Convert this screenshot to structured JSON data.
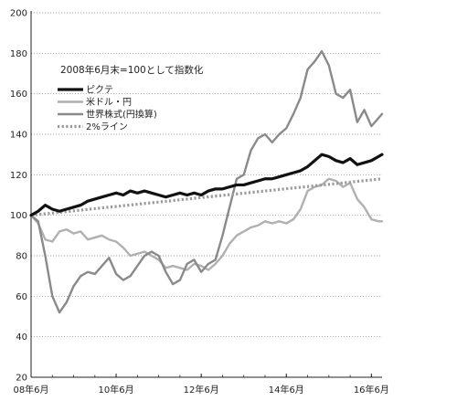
{
  "chart_data": {
    "type": "line",
    "subtitle": "2008年6月末=100として指数化",
    "ylim": [
      20,
      200
    ],
    "yticks": [
      20,
      40,
      60,
      80,
      100,
      120,
      140,
      160,
      180,
      200
    ],
    "xlim": [
      "2008-06",
      "2016-09"
    ],
    "xticks": [
      {
        "x": "2008-06",
        "label": "08年6月"
      },
      {
        "x": "2010-06",
        "label": "10年6月"
      },
      {
        "x": "2012-06",
        "label": "12年6月"
      },
      {
        "x": "2014-06",
        "label": "14年6月"
      },
      {
        "x": "2016-06",
        "label": "16年6月"
      }
    ],
    "grid": "horizontal",
    "legend_position": "top-left",
    "series": [
      {
        "name": "ピクテ",
        "color": "#111111",
        "style": "solid-thick",
        "points": [
          [
            "2008-06",
            100
          ],
          [
            "2008-08",
            102
          ],
          [
            "2008-10",
            105
          ],
          [
            "2008-12",
            103
          ],
          [
            "2009-02",
            102
          ],
          [
            "2009-04",
            103
          ],
          [
            "2009-06",
            104
          ],
          [
            "2009-08",
            105
          ],
          [
            "2009-10",
            107
          ],
          [
            "2009-12",
            108
          ],
          [
            "2010-02",
            109
          ],
          [
            "2010-04",
            110
          ],
          [
            "2010-06",
            111
          ],
          [
            "2010-08",
            110
          ],
          [
            "2010-10",
            112
          ],
          [
            "2010-12",
            111
          ],
          [
            "2011-02",
            112
          ],
          [
            "2011-04",
            111
          ],
          [
            "2011-06",
            110
          ],
          [
            "2011-08",
            109
          ],
          [
            "2011-10",
            110
          ],
          [
            "2011-12",
            111
          ],
          [
            "2012-02",
            110
          ],
          [
            "2012-04",
            111
          ],
          [
            "2012-06",
            110
          ],
          [
            "2012-08",
            112
          ],
          [
            "2012-10",
            113
          ],
          [
            "2012-12",
            113
          ],
          [
            "2013-02",
            114
          ],
          [
            "2013-04",
            115
          ],
          [
            "2013-06",
            115
          ],
          [
            "2013-08",
            116
          ],
          [
            "2013-10",
            117
          ],
          [
            "2013-12",
            118
          ],
          [
            "2014-02",
            118
          ],
          [
            "2014-04",
            119
          ],
          [
            "2014-06",
            120
          ],
          [
            "2014-08",
            121
          ],
          [
            "2014-10",
            122
          ],
          [
            "2014-12",
            124
          ],
          [
            "2015-02",
            127
          ],
          [
            "2015-04",
            130
          ],
          [
            "2015-06",
            129
          ],
          [
            "2015-08",
            127
          ],
          [
            "2015-10",
            126
          ],
          [
            "2015-12",
            128
          ],
          [
            "2016-02",
            125
          ],
          [
            "2016-04",
            126
          ],
          [
            "2016-06",
            127
          ],
          [
            "2016-08",
            129
          ],
          [
            "2016-09",
            130
          ]
        ]
      },
      {
        "name": "米ドル・円",
        "color": "#b0b0b0",
        "style": "solid",
        "points": [
          [
            "2008-06",
            100
          ],
          [
            "2008-08",
            96
          ],
          [
            "2008-10",
            88
          ],
          [
            "2008-12",
            87
          ],
          [
            "2009-02",
            92
          ],
          [
            "2009-04",
            93
          ],
          [
            "2009-06",
            91
          ],
          [
            "2009-08",
            92
          ],
          [
            "2009-10",
            88
          ],
          [
            "2009-12",
            89
          ],
          [
            "2010-02",
            90
          ],
          [
            "2010-04",
            88
          ],
          [
            "2010-06",
            87
          ],
          [
            "2010-08",
            84
          ],
          [
            "2010-10",
            80
          ],
          [
            "2010-12",
            81
          ],
          [
            "2011-02",
            82
          ],
          [
            "2011-04",
            80
          ],
          [
            "2011-06",
            78
          ],
          [
            "2011-08",
            74
          ],
          [
            "2011-10",
            75
          ],
          [
            "2011-12",
            74
          ],
          [
            "2012-02",
            73
          ],
          [
            "2012-04",
            76
          ],
          [
            "2012-06",
            75
          ],
          [
            "2012-08",
            73
          ],
          [
            "2012-10",
            76
          ],
          [
            "2012-12",
            80
          ],
          [
            "2013-02",
            86
          ],
          [
            "2013-04",
            90
          ],
          [
            "2013-06",
            92
          ],
          [
            "2013-08",
            94
          ],
          [
            "2013-10",
            95
          ],
          [
            "2013-12",
            97
          ],
          [
            "2014-02",
            96
          ],
          [
            "2014-04",
            97
          ],
          [
            "2014-06",
            96
          ],
          [
            "2014-08",
            98
          ],
          [
            "2014-10",
            103
          ],
          [
            "2014-12",
            112
          ],
          [
            "2015-02",
            114
          ],
          [
            "2015-04",
            115
          ],
          [
            "2015-06",
            118
          ],
          [
            "2015-08",
            117
          ],
          [
            "2015-10",
            114
          ],
          [
            "2015-12",
            116
          ],
          [
            "2016-02",
            108
          ],
          [
            "2016-04",
            104
          ],
          [
            "2016-06",
            98
          ],
          [
            "2016-08",
            97
          ],
          [
            "2016-09",
            97
          ]
        ]
      },
      {
        "name": "世界株式(円換算)",
        "color": "#8a8a8a",
        "style": "solid",
        "points": [
          [
            "2008-06",
            100
          ],
          [
            "2008-08",
            97
          ],
          [
            "2008-10",
            80
          ],
          [
            "2008-12",
            60
          ],
          [
            "2009-02",
            52
          ],
          [
            "2009-04",
            57
          ],
          [
            "2009-06",
            65
          ],
          [
            "2009-08",
            70
          ],
          [
            "2009-10",
            72
          ],
          [
            "2009-12",
            71
          ],
          [
            "2010-02",
            75
          ],
          [
            "2010-04",
            79
          ],
          [
            "2010-06",
            71
          ],
          [
            "2010-08",
            68
          ],
          [
            "2010-10",
            70
          ],
          [
            "2010-12",
            75
          ],
          [
            "2011-02",
            80
          ],
          [
            "2011-04",
            82
          ],
          [
            "2011-06",
            80
          ],
          [
            "2011-08",
            72
          ],
          [
            "2011-10",
            66
          ],
          [
            "2011-12",
            68
          ],
          [
            "2012-02",
            76
          ],
          [
            "2012-04",
            78
          ],
          [
            "2012-06",
            72
          ],
          [
            "2012-08",
            76
          ],
          [
            "2012-10",
            78
          ],
          [
            "2012-12",
            90
          ],
          [
            "2013-02",
            104
          ],
          [
            "2013-04",
            118
          ],
          [
            "2013-06",
            120
          ],
          [
            "2013-08",
            132
          ],
          [
            "2013-10",
            138
          ],
          [
            "2013-12",
            140
          ],
          [
            "2014-02",
            136
          ],
          [
            "2014-04",
            140
          ],
          [
            "2014-06",
            143
          ],
          [
            "2014-08",
            150
          ],
          [
            "2014-10",
            158
          ],
          [
            "2014-12",
            172
          ],
          [
            "2015-02",
            176
          ],
          [
            "2015-04",
            181
          ],
          [
            "2015-06",
            174
          ],
          [
            "2015-08",
            160
          ],
          [
            "2015-10",
            158
          ],
          [
            "2015-12",
            162
          ],
          [
            "2016-02",
            146
          ],
          [
            "2016-04",
            152
          ],
          [
            "2016-06",
            144
          ],
          [
            "2016-08",
            148
          ],
          [
            "2016-09",
            150
          ]
        ]
      },
      {
        "name": "2%ライン",
        "color": "#9a9a9a",
        "style": "dotted",
        "points": [
          [
            "2008-06",
            100
          ],
          [
            "2016-09",
            118
          ]
        ]
      }
    ]
  }
}
